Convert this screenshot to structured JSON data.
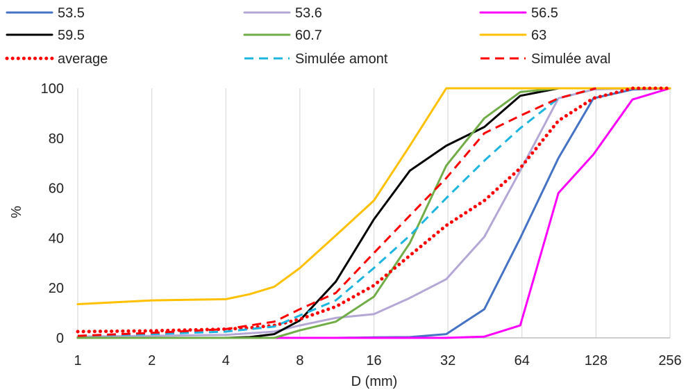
{
  "chart_data": {
    "type": "line",
    "xlabel": "D (mm)",
    "ylabel": "%",
    "xscale": "log2",
    "xlim": [
      1,
      256
    ],
    "ylim": [
      0,
      100
    ],
    "x_ticks": [
      1,
      2,
      4,
      8,
      16,
      32,
      64,
      128,
      256
    ],
    "x_tick_labels": [
      "1",
      "2",
      "4",
      "8",
      "16",
      "32",
      "64",
      "128",
      "256"
    ],
    "y_ticks": [
      0,
      20,
      40,
      60,
      80,
      100
    ],
    "y_tick_labels": [
      "0",
      "20",
      "40",
      "60",
      "80",
      "100"
    ],
    "grid": "vertical",
    "legend_position": "top",
    "series": [
      {
        "name": "53.5",
        "color": "#4472C4",
        "style": "solid",
        "x": [
          1,
          2,
          4,
          6.3,
          8,
          11.2,
          16,
          22.4,
          31.5,
          45,
          63,
          90,
          125,
          180,
          256
        ],
        "y": [
          0,
          0,
          0,
          0,
          0,
          0,
          0.2,
          0.3,
          1.5,
          11.5,
          40,
          72,
          96,
          99.5,
          100
        ]
      },
      {
        "name": "53.6",
        "color": "#B4A7D6",
        "style": "solid",
        "x": [
          1,
          2,
          4,
          6.3,
          8,
          11.2,
          16,
          22.4,
          31.5,
          45,
          63,
          90,
          125,
          180,
          256
        ],
        "y": [
          0.5,
          0.8,
          1.2,
          2.5,
          5,
          8,
          9.5,
          16,
          23.5,
          40.5,
          67,
          96,
          99.5,
          100,
          100
        ]
      },
      {
        "name": "56.5",
        "color": "#FF00FF",
        "style": "solid",
        "x": [
          1,
          2,
          4,
          6.3,
          8,
          11.2,
          16,
          22.4,
          31.5,
          45,
          63,
          90,
          125,
          180,
          256
        ],
        "y": [
          0,
          0,
          0,
          0,
          0,
          0,
          0,
          0,
          0,
          0.5,
          5,
          58,
          73.5,
          95.5,
          100
        ]
      },
      {
        "name": "59.5",
        "color": "#000000",
        "style": "solid",
        "x": [
          1,
          2,
          4,
          5,
          6.3,
          8,
          11.2,
          16,
          22.4,
          31.5,
          45,
          63,
          90,
          125,
          180,
          256
        ],
        "y": [
          0,
          0,
          0,
          0.3,
          1.5,
          7,
          22.5,
          47.5,
          67,
          77,
          84.5,
          97,
          100,
          100,
          100,
          100
        ]
      },
      {
        "name": "60.7",
        "color": "#70AD47",
        "style": "solid",
        "x": [
          1,
          2,
          4,
          6.3,
          8,
          11.2,
          16,
          22.4,
          31.5,
          45,
          63,
          90,
          125,
          180,
          256
        ],
        "y": [
          0,
          0,
          0,
          0,
          3,
          6.5,
          16.5,
          38,
          69,
          88,
          98.5,
          100,
          100,
          100,
          100
        ]
      },
      {
        "name": "63",
        "color": "#FFC000",
        "style": "solid",
        "x": [
          1,
          2,
          4,
          5,
          6.3,
          8,
          11.2,
          16,
          22.4,
          31.5,
          45,
          63,
          90,
          128,
          256
        ],
        "y": [
          13.5,
          15,
          15.5,
          17.5,
          20.5,
          28,
          41,
          55,
          77,
          100,
          100,
          100,
          100,
          100,
          100
        ]
      },
      {
        "name": "average",
        "color": "#FF0000",
        "style": "dotted",
        "x": [
          1,
          2,
          4,
          5,
          6.3,
          8,
          11.2,
          16,
          22.4,
          31.5,
          45,
          63,
          90,
          125,
          180,
          256
        ],
        "y": [
          2.5,
          2.8,
          3.5,
          4,
          5,
          7.5,
          12.5,
          21,
          33,
          45,
          55,
          68,
          87,
          96,
          100,
          100
        ]
      },
      {
        "name": "Simulée amont",
        "color": "#1CB5E0",
        "style": "dashed",
        "x": [
          1,
          2,
          4,
          6.3,
          8,
          11.2,
          16,
          22.4,
          31.5,
          45,
          63,
          90,
          128
        ],
        "y": [
          0.8,
          1.5,
          2.5,
          4.5,
          9,
          15,
          28,
          41,
          56,
          71,
          84,
          96,
          100
        ]
      },
      {
        "name": "Simulée aval",
        "color": "#FF0000",
        "style": "dashed",
        "x": [
          1,
          2,
          4,
          6.3,
          8,
          11.2,
          16,
          22.4,
          31.5,
          45,
          63,
          90,
          128
        ],
        "y": [
          0.8,
          2,
          3.5,
          6.5,
          11.5,
          18,
          34,
          49,
          64,
          82,
          89,
          96,
          100
        ]
      }
    ]
  }
}
